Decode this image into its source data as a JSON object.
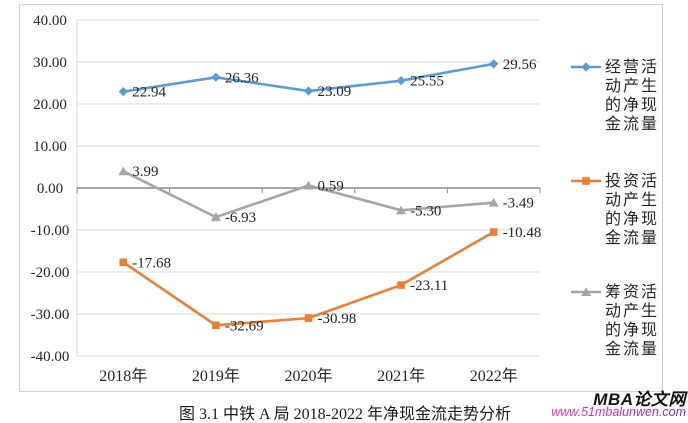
{
  "figure": {
    "caption": "图 3.1 中铁 A 局 2018-2022 年净现金流走势分析"
  },
  "watermark": {
    "site_name": "MBA论文网",
    "site_url": "www.51mbalunwen.com"
  },
  "chart_data": {
    "type": "line",
    "title": "图 3.1 中铁 A 局 2018-2022 年净现金流走势分析",
    "categories": [
      "2018年",
      "2019年",
      "2020年",
      "2021年",
      "2022年"
    ],
    "series": [
      {
        "name": "经营活动产生的净现金流量",
        "marker": "diamond",
        "color": "#5B9BD5",
        "values": [
          22.94,
          26.36,
          23.09,
          25.55,
          29.56
        ],
        "labels": [
          "22.94",
          "26.36",
          "23.09",
          "25.55",
          "29.56"
        ]
      },
      {
        "name": "投资活动产生的净现金流量",
        "marker": "square",
        "color": "#ED7D31",
        "values": [
          -17.68,
          -32.69,
          -30.98,
          -23.11,
          -10.48
        ],
        "labels": [
          "-17.68",
          "-32.69",
          "-30.98",
          "-23.11",
          "-10.48"
        ]
      },
      {
        "name": "筹资活动产生的净现金流量",
        "marker": "triangle",
        "color": "#A5A5A5",
        "values": [
          3.99,
          -6.93,
          0.59,
          -5.3,
          -3.49
        ],
        "labels": [
          "3.99",
          "-6.93",
          "0.59",
          "-5.30",
          "-3.49"
        ]
      }
    ],
    "ylim": [
      -40,
      40
    ],
    "y_step": 10,
    "y_tick_labels": [
      "40.00",
      "30.00",
      "20.00",
      "10.00",
      "0.00",
      "-10.00",
      "-20.00",
      "-30.00",
      "-40.00"
    ],
    "xlabel": "",
    "ylabel": "",
    "grid": true,
    "legend_position": "right",
    "axis_colors": {
      "gridline": "#D8D8D8",
      "zero_line": "#8A8A8A",
      "text": "#262626"
    }
  }
}
